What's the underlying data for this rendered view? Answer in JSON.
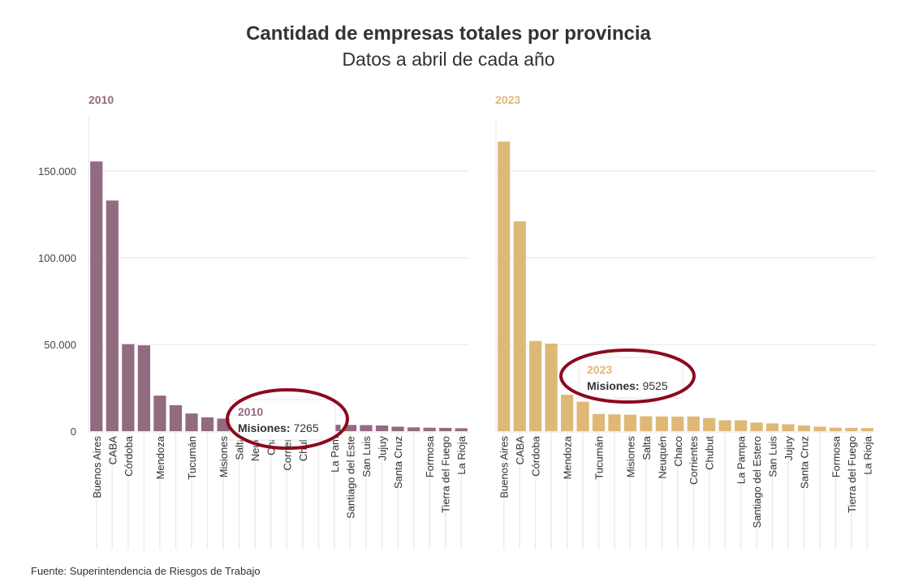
{
  "title": "Cantidad de empresas totales por provincia",
  "subtitle": "Datos a abril de cada año",
  "footer": "Fuente: Superintendencia de Riesgos de Trabajo",
  "chart_data": [
    {
      "type": "bar",
      "title": "2010",
      "color": "#936b81",
      "ylim": [
        0,
        180000
      ],
      "yticks": [
        0,
        50000,
        100000,
        150000
      ],
      "ytick_labels": [
        "0",
        "50.000",
        "100.000",
        "150.000"
      ],
      "grid": true,
      "categories": [
        "Buenos Aires",
        "CABA",
        "Córdoba",
        "",
        "Mendoza",
        "",
        "Tucumán",
        "",
        "Misiones",
        "Salta",
        "Neuquén",
        "Chaco",
        "Corrientes",
        "Chubut",
        "",
        "La Pampa",
        "Santiago del Estero",
        "San Luis",
        "Jujuy",
        "Santa Cruz",
        "",
        "Formosa",
        "Tierra del Fuego",
        "La Rioja"
      ],
      "category_labels_visible": [
        "Buenos Aires",
        "CABA",
        "Córdoba",
        "",
        "Mendoza",
        "",
        "Tucumán",
        "",
        "Misiones",
        "Salta",
        "Neuq",
        "Cha",
        "Corrien",
        "Chub",
        "",
        "La Pam",
        "Santiago del Este",
        "San Luis",
        "Jujuy",
        "Santa Cruz",
        "",
        "Formosa",
        "Tierra del Fuego",
        "La Rioja"
      ],
      "values": [
        155500,
        133000,
        50200,
        49500,
        20500,
        15000,
        10200,
        8000,
        7265,
        6800,
        5000,
        4800,
        4600,
        4300,
        4000,
        3700,
        3600,
        3500,
        3300,
        2600,
        2200,
        2000,
        1900,
        1700
      ],
      "tooltip": {
        "year": "2010",
        "label": "Misiones:",
        "value": "7265"
      }
    },
    {
      "type": "bar",
      "title": "2023",
      "color": "#dfb877",
      "ylim": [
        0,
        180000
      ],
      "yticks": [
        0,
        50000,
        100000,
        150000
      ],
      "grid": true,
      "categories": [
        "Buenos Aires",
        "CABA",
        "Córdoba",
        "",
        "Mendoza",
        "",
        "Tucumán",
        "",
        "Misiones",
        "Salta",
        "Neuquén",
        "Chaco",
        "Corrientes",
        "Chubut",
        "",
        "La Pampa",
        "Santiago del Estero",
        "San Luis",
        "Jujuy",
        "Santa Cruz",
        "",
        "Formosa",
        "Tierra del Fuego",
        "La Rioja"
      ],
      "values": [
        167000,
        121000,
        52000,
        50500,
        21000,
        17000,
        9900,
        9700,
        9525,
        8600,
        8500,
        8400,
        8500,
        7600,
        6300,
        6300,
        5000,
        4500,
        4000,
        3300,
        2600,
        2000,
        1900,
        1800
      ],
      "tooltip": {
        "year": "2023",
        "label": "Misiones:",
        "value": "9525"
      }
    }
  ],
  "annotation_color": "#8b0a1f"
}
